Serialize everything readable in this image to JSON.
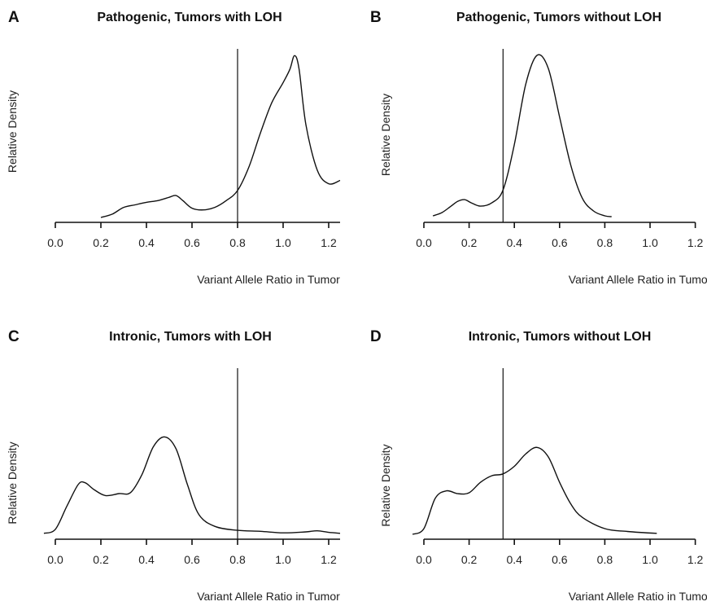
{
  "chart_data": [
    {
      "panel": "A",
      "type": "line",
      "title": "Pathogenic, Tumors with LOH",
      "xlabel": "Variant Allele Ratio in Tumor",
      "ylabel": "Relative Density",
      "xlim": [
        0.0,
        1.25
      ],
      "ylim": [
        0,
        1
      ],
      "xticks": [
        "0.0",
        "0.2",
        "0.4",
        "0.6",
        "0.8",
        "1.0",
        "1.2"
      ],
      "threshold": 0.8,
      "series": [
        {
          "x": [
            0.2,
            0.25,
            0.3,
            0.35,
            0.4,
            0.45,
            0.5,
            0.53,
            0.56,
            0.6,
            0.65,
            0.7,
            0.75,
            0.8,
            0.85,
            0.9,
            0.95,
            1.0,
            1.03,
            1.05,
            1.07,
            1.1,
            1.15,
            1.2,
            1.25
          ],
          "y": [
            0.0,
            0.02,
            0.06,
            0.075,
            0.09,
            0.1,
            0.12,
            0.13,
            0.1,
            0.055,
            0.045,
            0.06,
            0.1,
            0.16,
            0.3,
            0.5,
            0.68,
            0.8,
            0.88,
            0.96,
            0.88,
            0.55,
            0.28,
            0.2,
            0.22
          ]
        }
      ]
    },
    {
      "panel": "B",
      "type": "line",
      "title": "Pathogenic, Tumors without LOH",
      "xlabel": "Variant Allele Ratio in Tumor",
      "ylabel": "Relative Density",
      "xlim": [
        0.0,
        1.2
      ],
      "ylim": [
        0,
        1
      ],
      "xticks": [
        "0.0",
        "0.2",
        "0.4",
        "0.6",
        "0.8",
        "1.0",
        "1.2"
      ],
      "threshold": 0.35,
      "series": [
        {
          "x": [
            0.04,
            0.08,
            0.12,
            0.15,
            0.18,
            0.21,
            0.25,
            0.3,
            0.35,
            0.4,
            0.45,
            0.5,
            0.55,
            0.6,
            0.65,
            0.7,
            0.75,
            0.8,
            0.83
          ],
          "y": [
            0.01,
            0.03,
            0.07,
            0.1,
            0.11,
            0.09,
            0.07,
            0.09,
            0.17,
            0.45,
            0.82,
            1.0,
            0.92,
            0.62,
            0.32,
            0.12,
            0.04,
            0.01,
            0.005
          ]
        }
      ]
    },
    {
      "panel": "C",
      "type": "line",
      "title": "Intronic, Tumors with LOH",
      "xlabel": "Variant Allele Ratio in Tumor",
      "ylabel": "Relative Density",
      "xlim": [
        0.0,
        1.25
      ],
      "ylim": [
        0,
        1
      ],
      "xticks": [
        "0.0",
        "0.2",
        "0.4",
        "0.6",
        "0.8",
        "1.0",
        "1.2"
      ],
      "threshold": 0.8,
      "series": [
        {
          "x": [
            -0.05,
            0.0,
            0.05,
            0.1,
            0.13,
            0.17,
            0.22,
            0.28,
            0.33,
            0.38,
            0.43,
            0.48,
            0.53,
            0.58,
            0.63,
            0.7,
            0.8,
            0.9,
            1.0,
            1.1,
            1.15,
            1.2,
            1.25
          ],
          "y": [
            0.01,
            0.05,
            0.28,
            0.5,
            0.52,
            0.45,
            0.39,
            0.41,
            0.42,
            0.6,
            0.88,
            0.98,
            0.86,
            0.5,
            0.2,
            0.08,
            0.04,
            0.03,
            0.015,
            0.025,
            0.035,
            0.02,
            0.01
          ]
        }
      ]
    },
    {
      "panel": "D",
      "type": "line",
      "title": "Intronic, Tumors without LOH",
      "xlabel": "Variant Allele Ratio in Tumor",
      "ylabel": "Relative Density",
      "xlim": [
        0.0,
        1.2
      ],
      "ylim": [
        0,
        1
      ],
      "xticks": [
        "0.0",
        "0.2",
        "0.4",
        "0.6",
        "0.8",
        "1.0",
        "1.2"
      ],
      "threshold": 0.35,
      "series": [
        {
          "x": [
            -0.05,
            0.0,
            0.05,
            0.1,
            0.15,
            0.2,
            0.25,
            0.3,
            0.35,
            0.4,
            0.45,
            0.5,
            0.55,
            0.6,
            0.65,
            0.7,
            0.8,
            0.9,
            1.03
          ],
          "y": [
            0.0,
            0.06,
            0.38,
            0.46,
            0.43,
            0.44,
            0.55,
            0.62,
            0.64,
            0.72,
            0.85,
            0.92,
            0.82,
            0.55,
            0.32,
            0.18,
            0.06,
            0.03,
            0.01
          ]
        }
      ]
    }
  ]
}
